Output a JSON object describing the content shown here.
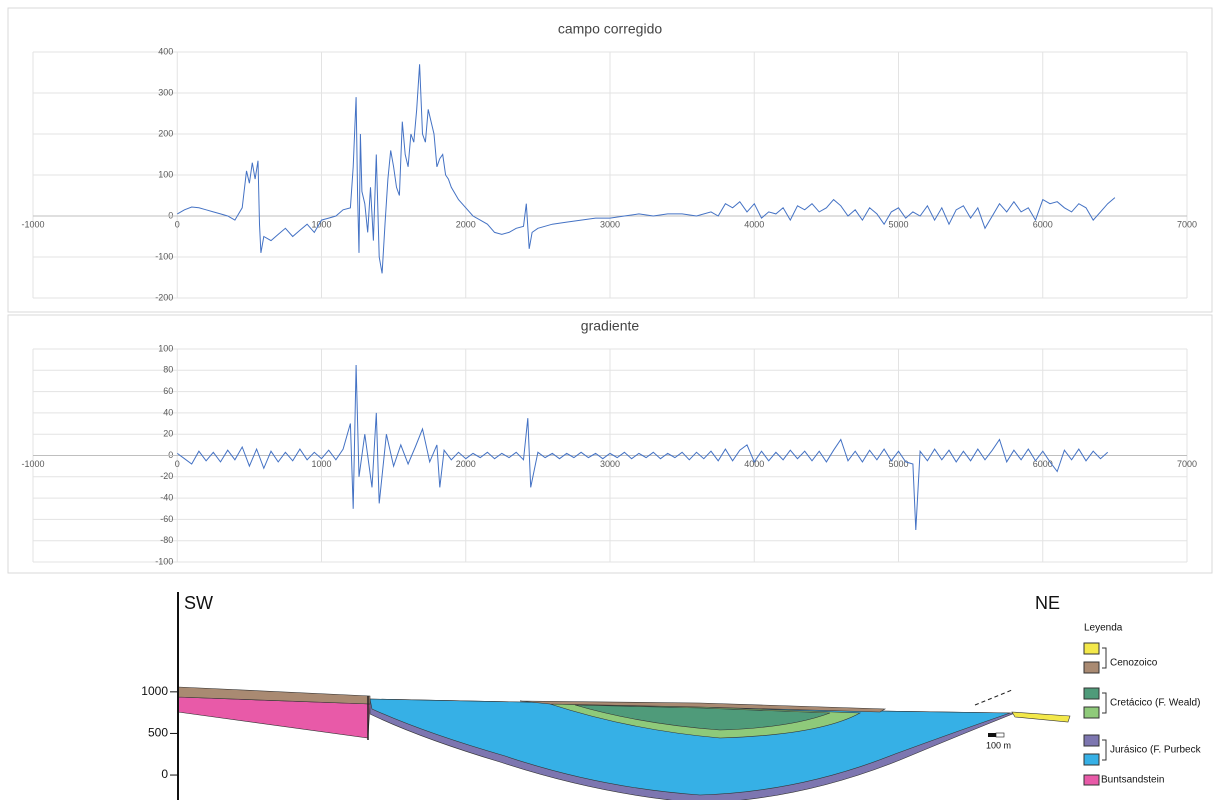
{
  "chart_data": [
    {
      "type": "line",
      "title": "campo corregido",
      "x": [
        0,
        50,
        100,
        150,
        200,
        250,
        300,
        350,
        400,
        450,
        480,
        500,
        520,
        540,
        560,
        570,
        580,
        600,
        650,
        700,
        750,
        800,
        850,
        900,
        950,
        1000,
        1050,
        1100,
        1150,
        1200,
        1220,
        1240,
        1250,
        1260,
        1270,
        1280,
        1300,
        1320,
        1340,
        1360,
        1380,
        1400,
        1420,
        1440,
        1460,
        1480,
        1500,
        1520,
        1540,
        1560,
        1580,
        1600,
        1620,
        1640,
        1660,
        1680,
        1700,
        1720,
        1740,
        1760,
        1780,
        1800,
        1820,
        1840,
        1860,
        1880,
        1900,
        1950,
        2000,
        2050,
        2100,
        2150,
        2200,
        2250,
        2300,
        2350,
        2400,
        2420,
        2440,
        2460,
        2500,
        2600,
        2700,
        2800,
        2900,
        3000,
        3100,
        3200,
        3300,
        3400,
        3500,
        3600,
        3700,
        3750,
        3800,
        3850,
        3900,
        3950,
        4000,
        4050,
        4100,
        4150,
        4200,
        4250,
        4300,
        4350,
        4400,
        4450,
        4500,
        4550,
        4600,
        4650,
        4700,
        4750,
        4800,
        4850,
        4900,
        4950,
        5000,
        5050,
        5100,
        5150,
        5200,
        5250,
        5300,
        5350,
        5400,
        5450,
        5500,
        5550,
        5600,
        5650,
        5700,
        5750,
        5800,
        5850,
        5900,
        5950,
        6000,
        6050,
        6100,
        6150,
        6200,
        6250,
        6300,
        6350,
        6400,
        6450,
        6500
      ],
      "series": [
        {
          "color": "#4472c4",
          "values": [
            5,
            15,
            22,
            20,
            15,
            10,
            5,
            0,
            -10,
            20,
            110,
            80,
            130,
            90,
            135,
            -20,
            -90,
            -50,
            -60,
            -45,
            -30,
            -50,
            -35,
            -20,
            -40,
            -10,
            -5,
            0,
            15,
            20,
            120,
            290,
            50,
            -90,
            200,
            60,
            30,
            -40,
            70,
            -60,
            150,
            -100,
            -140,
            -20,
            90,
            160,
            120,
            70,
            50,
            230,
            150,
            120,
            200,
            180,
            260,
            370,
            200,
            180,
            260,
            230,
            200,
            120,
            140,
            150,
            100,
            90,
            70,
            40,
            20,
            0,
            -10,
            -20,
            -40,
            -45,
            -40,
            -30,
            -25,
            30,
            -80,
            -40,
            -30,
            -20,
            -15,
            -10,
            -5,
            -5,
            0,
            5,
            0,
            5,
            5,
            0,
            10,
            0,
            30,
            20,
            35,
            10,
            30,
            -5,
            10,
            5,
            20,
            -10,
            25,
            15,
            30,
            10,
            20,
            40,
            25,
            0,
            15,
            -10,
            20,
            5,
            -20,
            10,
            20,
            -5,
            10,
            0,
            25,
            -10,
            20,
            -20,
            15,
            25,
            -5,
            20,
            -30,
            0,
            30,
            10,
            35,
            10,
            20,
            -10,
            40,
            30,
            35,
            20,
            10,
            30,
            20,
            -10,
            10,
            30,
            45
          ]
        }
      ],
      "xlim": [
        -1000,
        7000
      ],
      "xticks": [
        -1000,
        0,
        1000,
        2000,
        3000,
        4000,
        5000,
        6000,
        7000
      ],
      "ylim": [
        -200,
        400
      ],
      "yticks": [
        -200,
        -100,
        0,
        100,
        200,
        300,
        400
      ],
      "grid": true
    },
    {
      "type": "line",
      "title": "gradiente",
      "x": [
        0,
        50,
        100,
        150,
        200,
        250,
        300,
        350,
        400,
        450,
        500,
        550,
        600,
        650,
        700,
        750,
        800,
        850,
        900,
        950,
        1000,
        1050,
        1100,
        1150,
        1200,
        1220,
        1240,
        1260,
        1300,
        1350,
        1380,
        1400,
        1450,
        1500,
        1550,
        1600,
        1650,
        1700,
        1750,
        1800,
        1820,
        1850,
        1900,
        1950,
        2000,
        2050,
        2100,
        2150,
        2200,
        2250,
        2300,
        2350,
        2400,
        2430,
        2450,
        2500,
        2550,
        2600,
        2650,
        2700,
        2750,
        2800,
        2850,
        2900,
        2950,
        3000,
        3050,
        3100,
        3150,
        3200,
        3250,
        3300,
        3350,
        3400,
        3450,
        3500,
        3550,
        3600,
        3650,
        3700,
        3750,
        3800,
        3850,
        3900,
        3950,
        4000,
        4050,
        4100,
        4150,
        4200,
        4250,
        4300,
        4350,
        4400,
        4450,
        4500,
        4550,
        4600,
        4650,
        4700,
        4750,
        4800,
        4850,
        4900,
        4950,
        5000,
        5050,
        5100,
        5120,
        5150,
        5200,
        5250,
        5300,
        5350,
        5400,
        5450,
        5500,
        5550,
        5600,
        5650,
        5700,
        5750,
        5800,
        5850,
        5900,
        5950,
        6000,
        6050,
        6100,
        6150,
        6200,
        6250,
        6300,
        6350,
        6400,
        6450
      ],
      "series": [
        {
          "color": "#4472c4",
          "values": [
            2,
            -3,
            -8,
            4,
            -5,
            3,
            -6,
            5,
            -4,
            8,
            -10,
            6,
            -12,
            4,
            -6,
            3,
            -5,
            6,
            -4,
            3,
            -3,
            5,
            -4,
            6,
            30,
            -50,
            85,
            -20,
            20,
            -30,
            40,
            -45,
            20,
            -10,
            10,
            -8,
            8,
            25,
            -6,
            10,
            -30,
            5,
            -4,
            3,
            -3,
            2,
            -2,
            3,
            -3,
            2,
            -2,
            3,
            -4,
            35,
            -30,
            3,
            -2,
            2,
            -3,
            2,
            -2,
            3,
            -2,
            2,
            -3,
            2,
            -2,
            3,
            -3,
            2,
            -2,
            3,
            -3,
            2,
            -2,
            3,
            -4,
            3,
            -3,
            4,
            -5,
            6,
            -5,
            5,
            10,
            -6,
            4,
            -5,
            3,
            -4,
            5,
            -3,
            4,
            -5,
            4,
            -6,
            5,
            15,
            -5,
            4,
            -6,
            5,
            -4,
            6,
            -5,
            4,
            -6,
            -8,
            -70,
            4,
            -5,
            6,
            -4,
            5,
            -6,
            4,
            -5,
            6,
            -4,
            5,
            15,
            -6,
            5,
            -4,
            6,
            -5,
            4,
            -6,
            -15,
            5,
            -4,
            6,
            -5,
            4,
            -3,
            3
          ]
        }
      ],
      "xlim": [
        -1000,
        7000
      ],
      "xticks": [
        -1000,
        0,
        1000,
        2000,
        3000,
        4000,
        5000,
        6000,
        7000
      ],
      "ylim": [
        -100,
        100
      ],
      "yticks": [
        -100,
        -80,
        -60,
        -40,
        -20,
        0,
        20,
        40,
        60,
        80,
        100
      ],
      "grid": true
    }
  ],
  "section": {
    "left_label": "SW",
    "right_label": "NE",
    "ylim": [
      -300,
      2200
    ],
    "yticks": [
      0,
      500,
      1000
    ],
    "scale_label": "100 m",
    "legend": {
      "title": "Leyenda",
      "items": [
        "Cenozoico",
        "Cretácico (F. Weald)",
        "Jurásico (F. Purbeck",
        "Buntsandstein"
      ]
    }
  }
}
